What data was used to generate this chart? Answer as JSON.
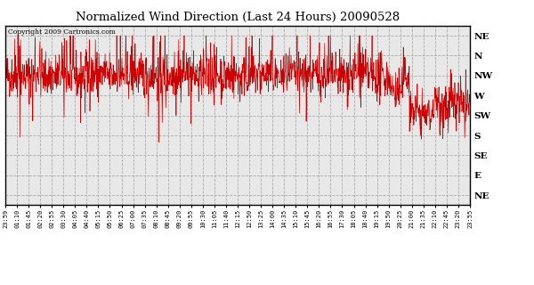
{
  "title": "Normalized Wind Direction (Last 24 Hours) 20090528",
  "copyright_text": "Copyright 2009 Cartronics.com",
  "line_color": "#cc0000",
  "bg_color": "#ffffff",
  "plot_bg_color": "#e8e8e8",
  "grid_color": "#aaaaaa",
  "ytick_labels": [
    "NE",
    "N",
    "NW",
    "W",
    "SW",
    "S",
    "SE",
    "E",
    "NE"
  ],
  "ytick_values": [
    8,
    7,
    6,
    5,
    4,
    3,
    2,
    1,
    0
  ],
  "ylim": [
    -0.5,
    8.5
  ],
  "xtick_labels": [
    "23:59",
    "01:10",
    "01:45",
    "02:20",
    "02:55",
    "03:30",
    "04:05",
    "04:40",
    "05:15",
    "05:50",
    "06:25",
    "07:00",
    "07:35",
    "08:10",
    "08:45",
    "09:20",
    "09:55",
    "10:30",
    "11:05",
    "11:40",
    "12:15",
    "12:50",
    "13:25",
    "14:00",
    "14:35",
    "15:10",
    "15:45",
    "16:20",
    "16:55",
    "17:30",
    "18:05",
    "18:40",
    "19:15",
    "19:50",
    "20:25",
    "21:00",
    "21:35",
    "22:10",
    "22:45",
    "23:20",
    "23:55"
  ]
}
